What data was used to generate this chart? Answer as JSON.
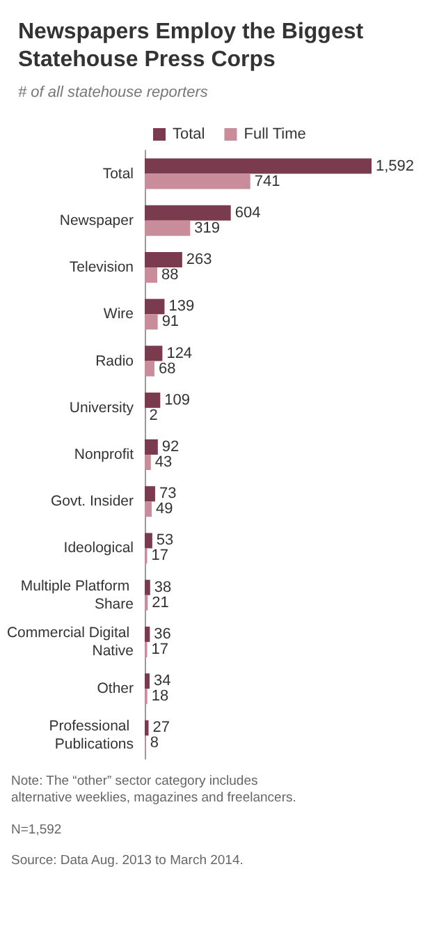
{
  "chart_data": {
    "type": "bar",
    "orientation": "horizontal",
    "title": "Newspapers Employ the Biggest Statehouse Press Corps",
    "subtitle": "# of all statehouse reporters",
    "categories": [
      "Total",
      "Newspaper",
      "Television",
      "Wire",
      "Radio",
      "University",
      "Nonprofit",
      "Govt. Insider",
      "Ideological",
      "Multiple Platform Share",
      "Commercial Digital Native",
      "Other",
      "Professional Publications"
    ],
    "series": [
      {
        "name": "Total",
        "color": "#7b3b4e",
        "values": [
          1592,
          604,
          263,
          139,
          124,
          109,
          92,
          73,
          53,
          38,
          36,
          34,
          27
        ],
        "value_labels": [
          "1,592",
          "604",
          "263",
          "139",
          "124",
          "109",
          "92",
          "73",
          "53",
          "38",
          "36",
          "34",
          "27"
        ]
      },
      {
        "name": "Full Time",
        "color": "#c98c9a",
        "values": [
          741,
          319,
          88,
          91,
          68,
          2,
          43,
          49,
          17,
          21,
          17,
          18,
          8
        ],
        "value_labels": [
          "741",
          "319",
          "88",
          "91",
          "68",
          "2",
          "43",
          "49",
          "17",
          "21",
          "17",
          "18",
          "8"
        ]
      }
    ],
    "legend": "top",
    "annotations": [
      "Note: The “other” sector category includes alternative weeklies, magazines and freelancers.",
      "N=1,592",
      "Source: Data Aug. 2013 to March 2014."
    ]
  }
}
